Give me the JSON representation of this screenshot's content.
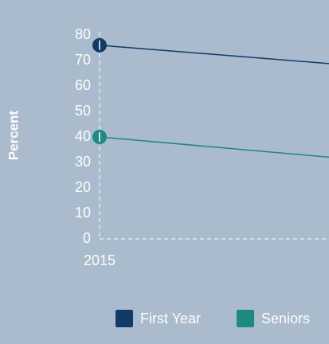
{
  "chart_data": {
    "type": "line",
    "y_label": "Percent",
    "categories": [
      "2015",
      null
    ],
    "series": [
      {
        "name": "First Year",
        "color": "#0f3b66",
        "values": [
          76,
          66
        ]
      },
      {
        "name": "Seniors",
        "color": "#1b8a7f",
        "values": [
          40,
          29
        ]
      }
    ],
    "ylim": [
      0,
      80
    ],
    "yticks": [
      0,
      10,
      20,
      30,
      40,
      50,
      60,
      70,
      80
    ],
    "grid": true,
    "legend": "bottom"
  }
}
